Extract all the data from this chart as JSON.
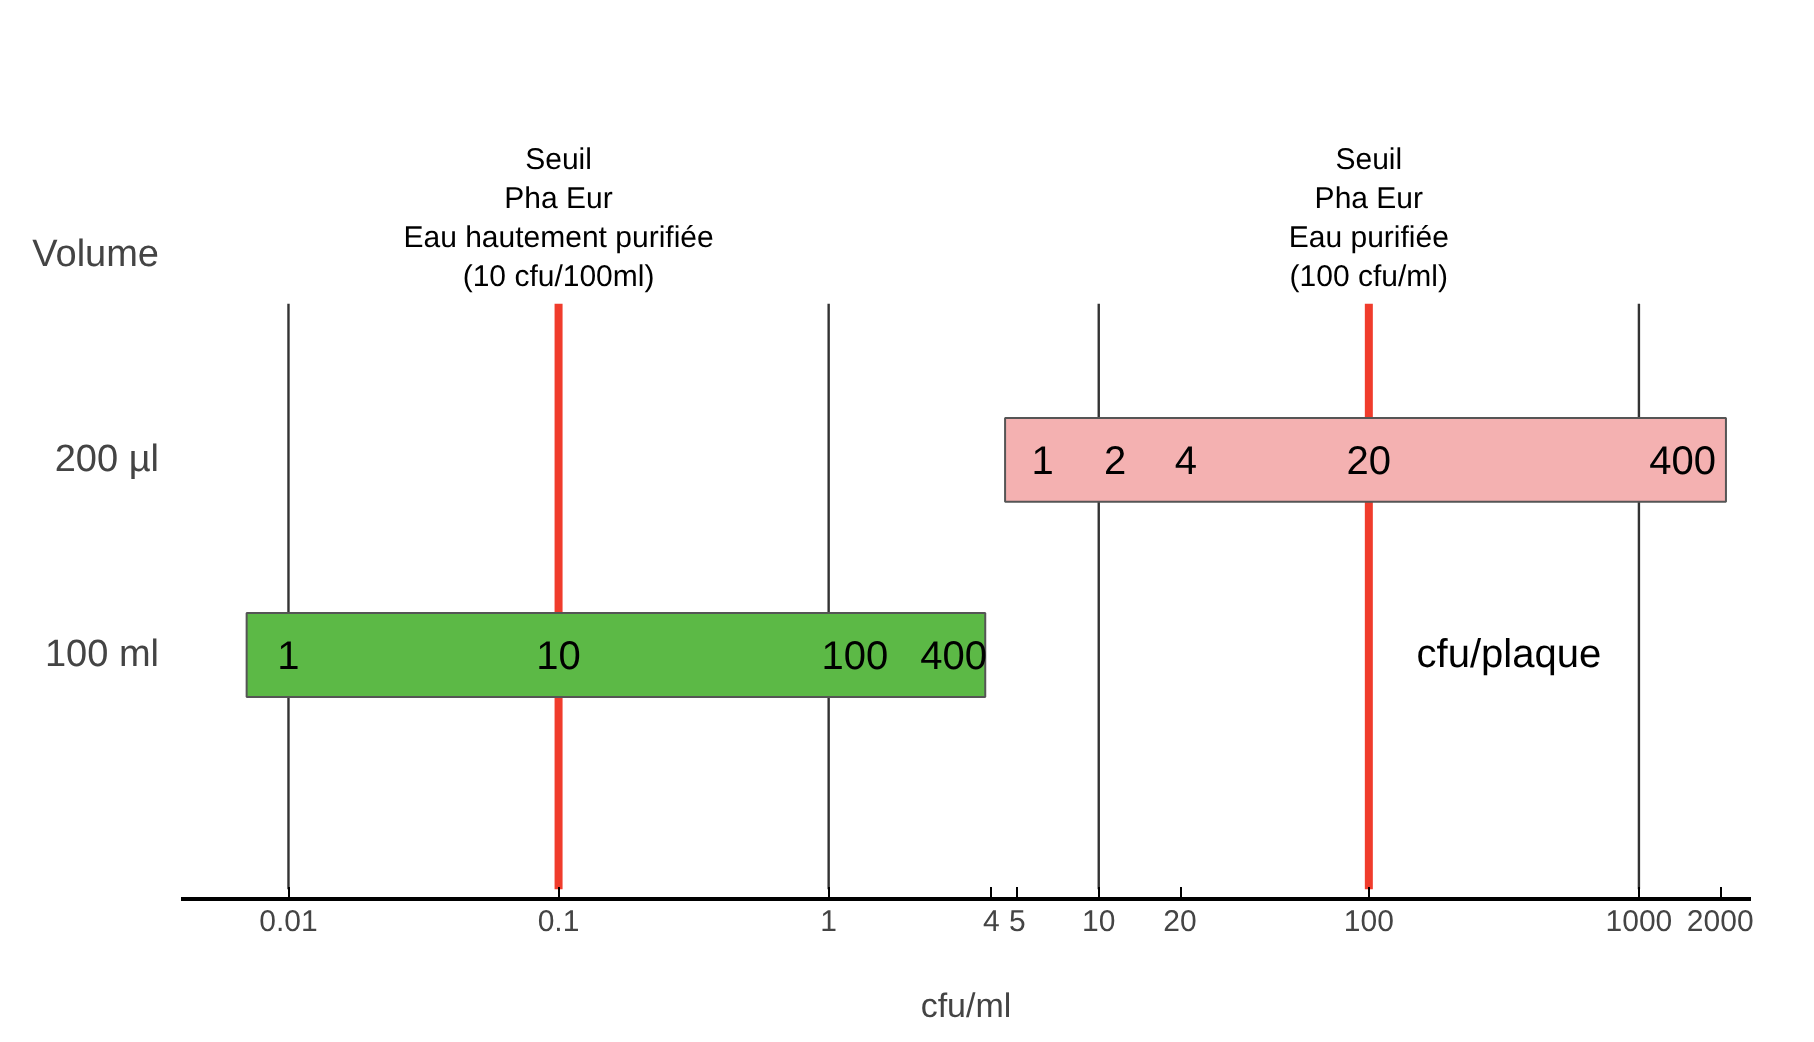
{
  "chart_data": {
    "type": "bar",
    "orientation": "horizontal",
    "log": "x",
    "categories": [
      "200 µl",
      "100 ml"
    ],
    "base": [
      4.5,
      0.007
    ],
    "values": [
      2095.5,
      3.793
    ],
    "colors": [
      "#f4b1b1",
      "#5cb946"
    ],
    "xlim": [
      0.004,
      2600
    ],
    "xticks": [
      0.01,
      0.1,
      1,
      4,
      5,
      10,
      20,
      100,
      1000,
      2000
    ],
    "xlabel": "cfu/ml",
    "ylabel": "Volume",
    "grid": false,
    "ref_lines": [
      {
        "axis": "x",
        "value": 0.01,
        "label": null,
        "color": "#333333"
      },
      {
        "axis": "x",
        "value": 1,
        "label": null,
        "color": "#333333"
      },
      {
        "axis": "x",
        "value": 10,
        "label": null,
        "color": "#333333"
      },
      {
        "axis": "x",
        "value": 1000,
        "label": null,
        "color": "#333333"
      },
      {
        "axis": "x",
        "value": 0.1,
        "label": "Seuil\nPha Eur\nEau hautement purifiée\n(10 cfu/100ml)",
        "color": "#f03c2c"
      },
      {
        "axis": "x",
        "value": 100,
        "label": "Seuil\nPha Eur\nEau purifiée\n(100 cfu/ml)",
        "color": "#f03c2c"
      }
    ],
    "annotations": [
      "1",
      "2",
      "4",
      "20",
      "400",
      "1",
      "10",
      "100",
      "400",
      "cfu/plaque"
    ]
  }
}
